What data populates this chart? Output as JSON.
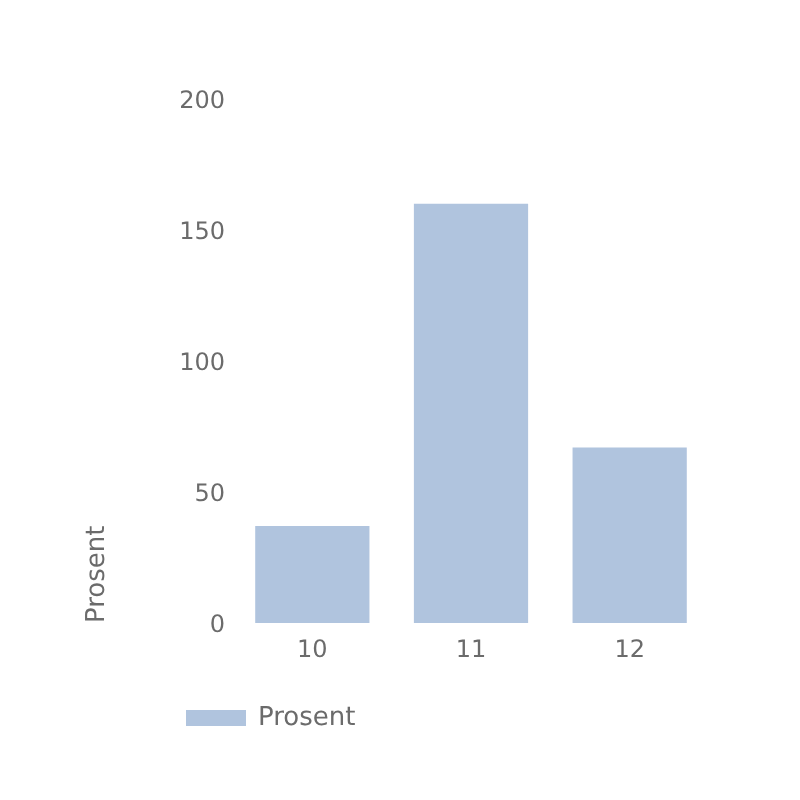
{
  "chart_data": {
    "type": "bar",
    "ylabel": "Prosent",
    "categories": [
      "10",
      "11",
      "12"
    ],
    "series": [
      {
        "name": "Prosent",
        "color": "#b0c4de",
        "values": [
          37,
          160,
          67
        ]
      }
    ],
    "ylim": [
      0,
      200
    ],
    "yticks": [
      0,
      50,
      100,
      150,
      200
    ],
    "grid": false,
    "legend": "bottom"
  }
}
